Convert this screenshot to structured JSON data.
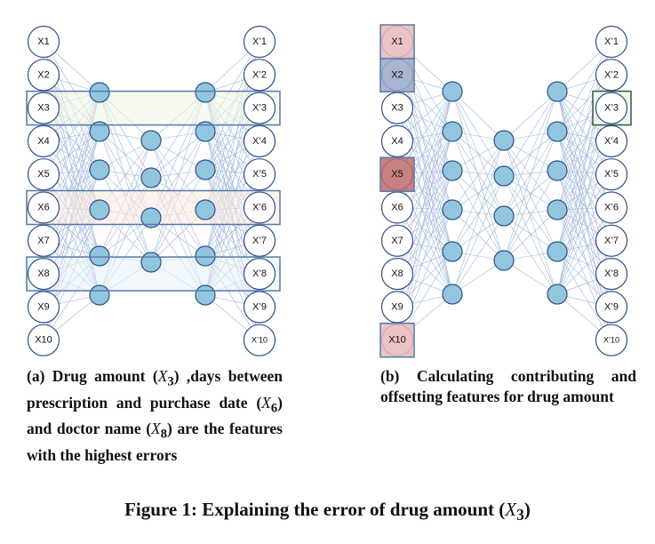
{
  "figure": {
    "title_prefix": "Figure 1: Explaining the error of drug amount (",
    "title_var": "X",
    "title_sub": "3",
    "title_suffix": ")"
  },
  "panel_a": {
    "input_labels": [
      "X1",
      "X2",
      "X3",
      "X4",
      "X5",
      "X6",
      "X7",
      "X8",
      "X9",
      "X10"
    ],
    "output_labels": [
      "X’1",
      "X’2",
      "X’3",
      "X’4",
      "X’5",
      "X’6",
      "X’7",
      "X’8",
      "X’9",
      "X’10"
    ],
    "hidden_layers": [
      6,
      4,
      6
    ],
    "highlighted_features": [
      {
        "row": 3,
        "color": "#eef4e4"
      },
      {
        "row": 6,
        "color": "#fbe9df"
      },
      {
        "row": 8,
        "color": "#e5f0f7"
      }
    ],
    "caption": {
      "p1": "(a) Drug amount (",
      "v1": "X",
      "s1": "3",
      "p2": ") ,days between prescription and purchase date (",
      "v2": "X",
      "s2": "6",
      "p3": ") and doctor name (",
      "v3": "X",
      "s3": "8",
      "p4": ") are the features with the highest errors"
    }
  },
  "panel_b": {
    "input_labels": [
      "X1",
      "X2",
      "X3",
      "X4",
      "X5",
      "X6",
      "X7",
      "X8",
      "X9",
      "X10"
    ],
    "output_labels": [
      "X’1",
      "X’2",
      "X’3",
      "X’4",
      "X’5",
      "X’6",
      "X’7",
      "X’8",
      "X’9",
      "X’10"
    ],
    "hidden_layers": [
      6,
      4,
      6
    ],
    "highlighted_inputs": [
      {
        "row": 1,
        "color": "#e8b9bb"
      },
      {
        "row": 2,
        "color": "#9aa9c9"
      },
      {
        "row": 5,
        "color": "#bf6a6c"
      },
      {
        "row": 10,
        "color": "#e8b9bb"
      }
    ],
    "highlighted_output": {
      "row": 3,
      "color": "#f2f6ee"
    },
    "caption": {
      "text": "(b) Calculating contributing and offsetting features for drug amount"
    }
  },
  "colors": {
    "hidden_node_fill": "#92c6de",
    "node_stroke": "#2f4f8a",
    "edge": "#9fb6da",
    "frame_stroke": "#5878a8"
  }
}
